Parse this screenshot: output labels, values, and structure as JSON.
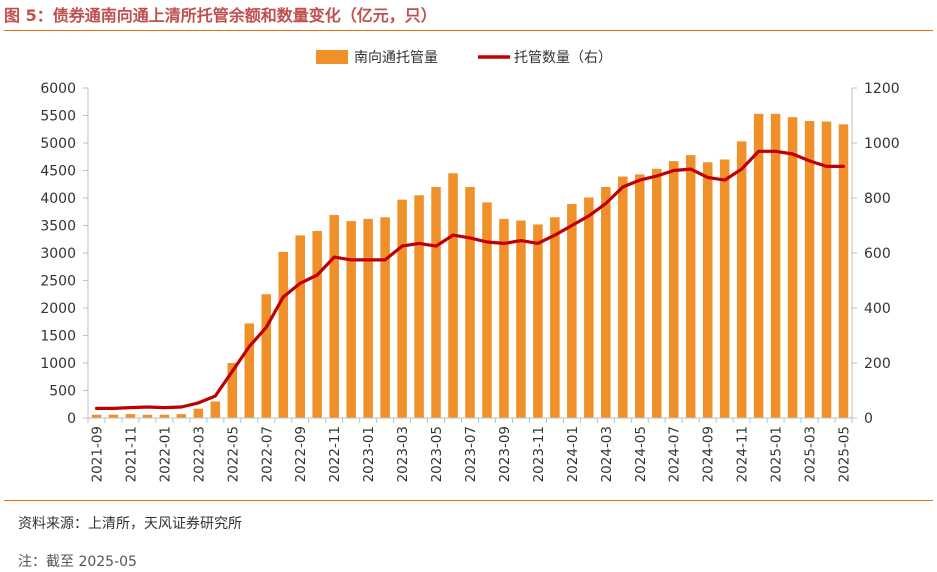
{
  "figure": {
    "title": "图 5：债券通南向通上清所托管余额和数量变化（亿元，只）",
    "source": "资料来源：上清所，天风证券研究所",
    "note": "注：截至 2025-05"
  },
  "colors": {
    "bar": "#f0902a",
    "line": "#c00000",
    "axis": "#bfbfbf",
    "title": "#c0504d",
    "rule": "#e46c0a"
  },
  "chart_data": {
    "type": "bar+line",
    "title": "",
    "legend": {
      "position": "top-center"
    },
    "grid": false,
    "x": [
      "2021-09",
      "2021-10",
      "2021-11",
      "2021-12",
      "2022-01",
      "2022-02",
      "2022-03",
      "2022-04",
      "2022-05",
      "2022-06",
      "2022-07",
      "2022-08",
      "2022-09",
      "2022-10",
      "2022-11",
      "2022-12",
      "2023-01",
      "2023-02",
      "2023-03",
      "2023-04",
      "2023-05",
      "2023-06",
      "2023-07",
      "2023-08",
      "2023-09",
      "2023-10",
      "2023-11",
      "2023-12",
      "2024-01",
      "2024-02",
      "2024-03",
      "2024-04",
      "2024-05",
      "2024-06",
      "2024-07",
      "2024-08",
      "2024-09",
      "2024-10",
      "2024-11",
      "2024-12",
      "2025-01",
      "2025-02",
      "2025-03",
      "2025-04",
      "2025-05"
    ],
    "x_tick_labels": [
      "2021-09",
      "2021-11",
      "2022-01",
      "2022-03",
      "2022-05",
      "2022-07",
      "2022-09",
      "2022-11",
      "2023-01",
      "2023-03",
      "2023-05",
      "2023-07",
      "2023-09",
      "2023-11",
      "2024-01",
      "2024-03",
      "2024-05",
      "2024-07",
      "2024-09",
      "2024-11",
      "2025-01",
      "2025-03",
      "2025-05"
    ],
    "y_left": {
      "ylim": [
        0,
        6000
      ],
      "ticks": [
        0,
        500,
        1000,
        1500,
        2000,
        2500,
        3000,
        3500,
        4000,
        4500,
        5000,
        5500,
        6000
      ]
    },
    "y_right": {
      "ylim": [
        0,
        1200
      ],
      "ticks": [
        0,
        200,
        400,
        600,
        800,
        1000,
        1200
      ]
    },
    "series": [
      {
        "name": "南向通托管量",
        "type": "bar",
        "axis": "left",
        "values": [
          60,
          60,
          70,
          60,
          60,
          70,
          170,
          300,
          1000,
          1720,
          2250,
          3020,
          3320,
          3400,
          3690,
          3580,
          3620,
          3650,
          3970,
          4050,
          4200,
          4450,
          4200,
          3920,
          3620,
          3590,
          3520,
          3650,
          3890,
          4010,
          4200,
          4390,
          4430,
          4530,
          4670,
          4780,
          4650,
          4700,
          5030,
          5530,
          5530,
          5470,
          5400,
          5390,
          5340
        ]
      },
      {
        "name": "托管数量（右）",
        "type": "line",
        "axis": "right",
        "values": [
          35,
          35,
          38,
          40,
          38,
          40,
          55,
          80,
          170,
          260,
          330,
          440,
          490,
          520,
          585,
          575,
          575,
          575,
          625,
          635,
          625,
          665,
          655,
          640,
          635,
          645,
          635,
          665,
          700,
          735,
          780,
          840,
          865,
          880,
          900,
          905,
          875,
          865,
          905,
          970,
          970,
          960,
          935,
          915,
          915
        ]
      }
    ]
  }
}
